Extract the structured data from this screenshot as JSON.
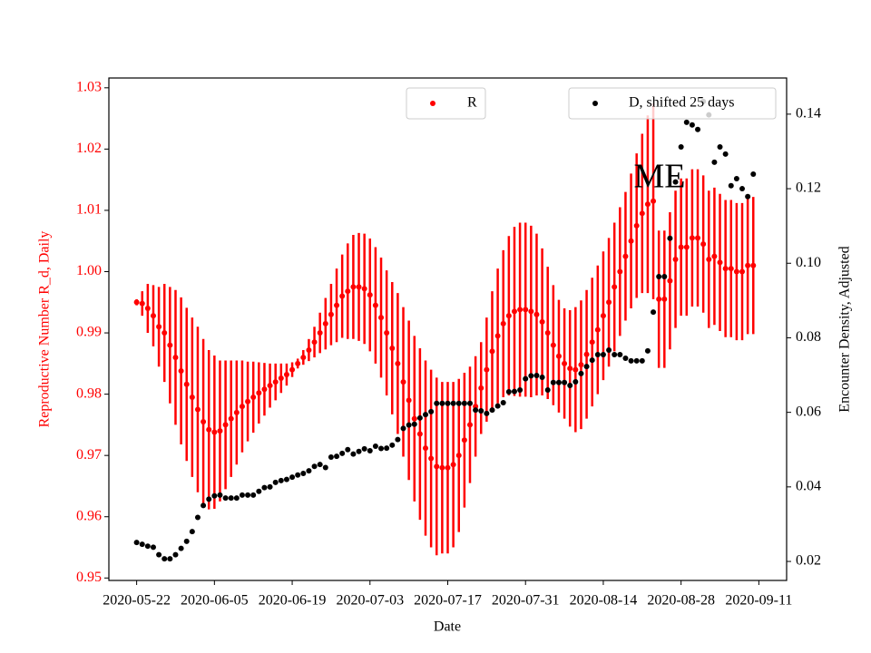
{
  "chart_data": {
    "type": "scatter",
    "annotations": [
      "ME"
    ],
    "xlabel": "Date",
    "ylabel": "Reproductive Number R_d, Daily",
    "y2label": "Encounter Density, Adjusted",
    "x": [
      "2020-05-22",
      "2020-05-23",
      "2020-05-24",
      "2020-05-25",
      "2020-05-26",
      "2020-05-27",
      "2020-05-28",
      "2020-05-29",
      "2020-05-30",
      "2020-05-31",
      "2020-06-01",
      "2020-06-02",
      "2020-06-03",
      "2020-06-04",
      "2020-06-05",
      "2020-06-06",
      "2020-06-07",
      "2020-06-08",
      "2020-06-09",
      "2020-06-10",
      "2020-06-11",
      "2020-06-12",
      "2020-06-13",
      "2020-06-14",
      "2020-06-15",
      "2020-06-16",
      "2020-06-17",
      "2020-06-18",
      "2020-06-19",
      "2020-06-20",
      "2020-06-21",
      "2020-06-22",
      "2020-06-23",
      "2020-06-24",
      "2020-06-25",
      "2020-06-26",
      "2020-06-27",
      "2020-06-28",
      "2020-06-29",
      "2020-06-30",
      "2020-07-01",
      "2020-07-02",
      "2020-07-03",
      "2020-07-04",
      "2020-07-05",
      "2020-07-06",
      "2020-07-07",
      "2020-07-08",
      "2020-07-09",
      "2020-07-10",
      "2020-07-11",
      "2020-07-12",
      "2020-07-13",
      "2020-07-14",
      "2020-07-15",
      "2020-07-16",
      "2020-07-17",
      "2020-07-18",
      "2020-07-19",
      "2020-07-20",
      "2020-07-21",
      "2020-07-22",
      "2020-07-23",
      "2020-07-24",
      "2020-07-25",
      "2020-07-26",
      "2020-07-27",
      "2020-07-28",
      "2020-07-29",
      "2020-07-30",
      "2020-07-31",
      "2020-08-01",
      "2020-08-02",
      "2020-08-03",
      "2020-08-04",
      "2020-08-05",
      "2020-08-06",
      "2020-08-07",
      "2020-08-08",
      "2020-08-09",
      "2020-08-10",
      "2020-08-11",
      "2020-08-12",
      "2020-08-13",
      "2020-08-14",
      "2020-08-15",
      "2020-08-16",
      "2020-08-17",
      "2020-08-18",
      "2020-08-19",
      "2020-08-20",
      "2020-08-21",
      "2020-08-22",
      "2020-08-23",
      "2020-08-24",
      "2020-08-25",
      "2020-08-26",
      "2020-08-27",
      "2020-08-28",
      "2020-08-29",
      "2020-08-30",
      "2020-08-31",
      "2020-09-01",
      "2020-09-02",
      "2020-09-03",
      "2020-09-04",
      "2020-09-05",
      "2020-09-06",
      "2020-09-07",
      "2020-09-08",
      "2020-09-09",
      "2020-09-10"
    ],
    "xlim": [
      "2020-05-17",
      "2020-09-16"
    ],
    "xticks": [
      "2020-05-22",
      "2020-06-05",
      "2020-06-19",
      "2020-07-03",
      "2020-07-17",
      "2020-07-31",
      "2020-08-14",
      "2020-08-28",
      "2020-09-11"
    ],
    "ylim": [
      0.9496,
      1.0316
    ],
    "yticks": [
      0.95,
      0.96,
      0.97,
      0.98,
      0.99,
      {
        "value": 1,
        "label": "1.00"
      },
      1.01,
      1.02,
      1.03
    ],
    "y2lim": [
      0.0149,
      0.1497
    ],
    "y2ticks": [
      0.02,
      0.04,
      0.06,
      0.08,
      {
        "value": 0.1,
        "label": "0.10"
      },
      0.12,
      0.14
    ],
    "series": [
      {
        "name": "R",
        "color": "#ff0000",
        "axis": "y",
        "legend_loc": "upper center",
        "values": [
          0.995,
          0.9948,
          0.994,
          0.9928,
          0.991,
          0.99,
          0.988,
          0.986,
          0.9838,
          0.9816,
          0.9795,
          0.9775,
          0.9755,
          0.9742,
          0.9738,
          0.974,
          0.975,
          0.976,
          0.977,
          0.978,
          0.9788,
          0.9795,
          0.9802,
          0.9808,
          0.9814,
          0.982,
          0.9826,
          0.9832,
          0.984,
          0.985,
          0.986,
          0.9872,
          0.9885,
          0.99,
          0.9915,
          0.993,
          0.9945,
          0.996,
          0.9968,
          0.9975,
          0.9975,
          0.9972,
          0.9962,
          0.9945,
          0.9925,
          0.99,
          0.9875,
          0.985,
          0.982,
          0.979,
          0.976,
          0.9735,
          0.9712,
          0.9695,
          0.9682,
          0.968,
          0.968,
          0.9685,
          0.97,
          0.9725,
          0.975,
          0.978,
          0.981,
          0.984,
          0.987,
          0.9895,
          0.9915,
          0.9928,
          0.9935,
          0.9938,
          0.9938,
          0.9935,
          0.993,
          0.9918,
          0.99,
          0.988,
          0.9862,
          0.985,
          0.9842,
          0.984,
          0.9848,
          0.9865,
          0.9885,
          0.9905,
          0.9928,
          0.995,
          0.9975,
          1.0,
          1.0025,
          1.005,
          1.0075,
          1.0095,
          1.011,
          1.0115,
          0.9955,
          0.9955,
          0.9985,
          1.002,
          1.004,
          1.004,
          1.0055,
          1.0055,
          1.0045,
          1.002,
          1.0025,
          1.0015,
          1.0005,
          1.0005,
          1.0,
          1.0,
          1.001,
          1.001
        ],
        "errors": [
          0.0005,
          0.002,
          0.004,
          0.005,
          0.0065,
          0.008,
          0.0095,
          0.011,
          0.012,
          0.0125,
          0.013,
          0.0135,
          0.0135,
          0.013,
          0.0125,
          0.0115,
          0.0105,
          0.0095,
          0.0085,
          0.0075,
          0.0065,
          0.0058,
          0.005,
          0.0043,
          0.0036,
          0.003,
          0.0024,
          0.0018,
          0.0012,
          0.0008,
          0.0012,
          0.0018,
          0.0025,
          0.0033,
          0.0042,
          0.005,
          0.006,
          0.0068,
          0.0078,
          0.0085,
          0.0088,
          0.009,
          0.0092,
          0.0095,
          0.0098,
          0.0102,
          0.0108,
          0.0115,
          0.0122,
          0.013,
          0.0135,
          0.014,
          0.0143,
          0.0145,
          0.0145,
          0.014,
          0.014,
          0.0135,
          0.0125,
          0.011,
          0.0095,
          0.0082,
          0.0075,
          0.0085,
          0.0098,
          0.011,
          0.012,
          0.013,
          0.0138,
          0.0142,
          0.0142,
          0.014,
          0.0132,
          0.012,
          0.0108,
          0.0098,
          0.0092,
          0.009,
          0.0095,
          0.0102,
          0.0105,
          0.0105,
          0.0105,
          0.0105,
          0.0105,
          0.0105,
          0.0105,
          0.0105,
          0.0105,
          0.011,
          0.0118,
          0.013,
          0.0145,
          0.016,
          0.0112,
          0.0112,
          0.0112,
          0.0112,
          0.0112,
          0.0112,
          0.0112,
          0.0112,
          0.0112,
          0.0112,
          0.0112,
          0.0112,
          0.0112,
          0.0112,
          0.0112,
          0.0112,
          0.0112,
          0.0112
        ]
      },
      {
        "name": "D, shifted 25 days",
        "color": "#000000",
        "axis": "y2",
        "legend_loc": "upper right",
        "values": [
          0.0251,
          0.0246,
          0.0241,
          0.0238,
          0.0218,
          0.0207,
          0.0207,
          0.0218,
          0.0235,
          0.0254,
          0.028,
          0.0318,
          0.035,
          0.0367,
          0.0376,
          0.0378,
          0.037,
          0.037,
          0.037,
          0.0378,
          0.0378,
          0.0378,
          0.0388,
          0.0398,
          0.04,
          0.0412,
          0.0417,
          0.042,
          0.0426,
          0.0432,
          0.0436,
          0.0443,
          0.0455,
          0.046,
          0.0452,
          0.048,
          0.0482,
          0.049,
          0.05,
          0.0488,
          0.0495,
          0.0502,
          0.0497,
          0.0509,
          0.0503,
          0.0504,
          0.0512,
          0.0527,
          0.0557,
          0.0566,
          0.0568,
          0.0585,
          0.0594,
          0.0602,
          0.0624,
          0.0624,
          0.0624,
          0.0624,
          0.0624,
          0.0624,
          0.0624,
          0.0606,
          0.0604,
          0.0597,
          0.0606,
          0.0617,
          0.0626,
          0.0655,
          0.0656,
          0.066,
          0.069,
          0.0698,
          0.0699,
          0.0694,
          0.066,
          0.068,
          0.068,
          0.068,
          0.0672,
          0.0682,
          0.0704,
          0.0723,
          0.074,
          0.0755,
          0.0755,
          0.0767,
          0.0755,
          0.0755,
          0.0745,
          0.0738,
          0.0738,
          0.0738,
          0.0765,
          0.0869,
          0.0964,
          0.0964,
          0.1067,
          0.1218,
          0.1312,
          0.1378,
          0.1371,
          0.1359,
          0.1434,
          0.1398,
          0.1271,
          0.1312,
          0.1293,
          0.1208,
          0.1227,
          0.12,
          0.1179,
          0.1239
        ]
      }
    ]
  }
}
